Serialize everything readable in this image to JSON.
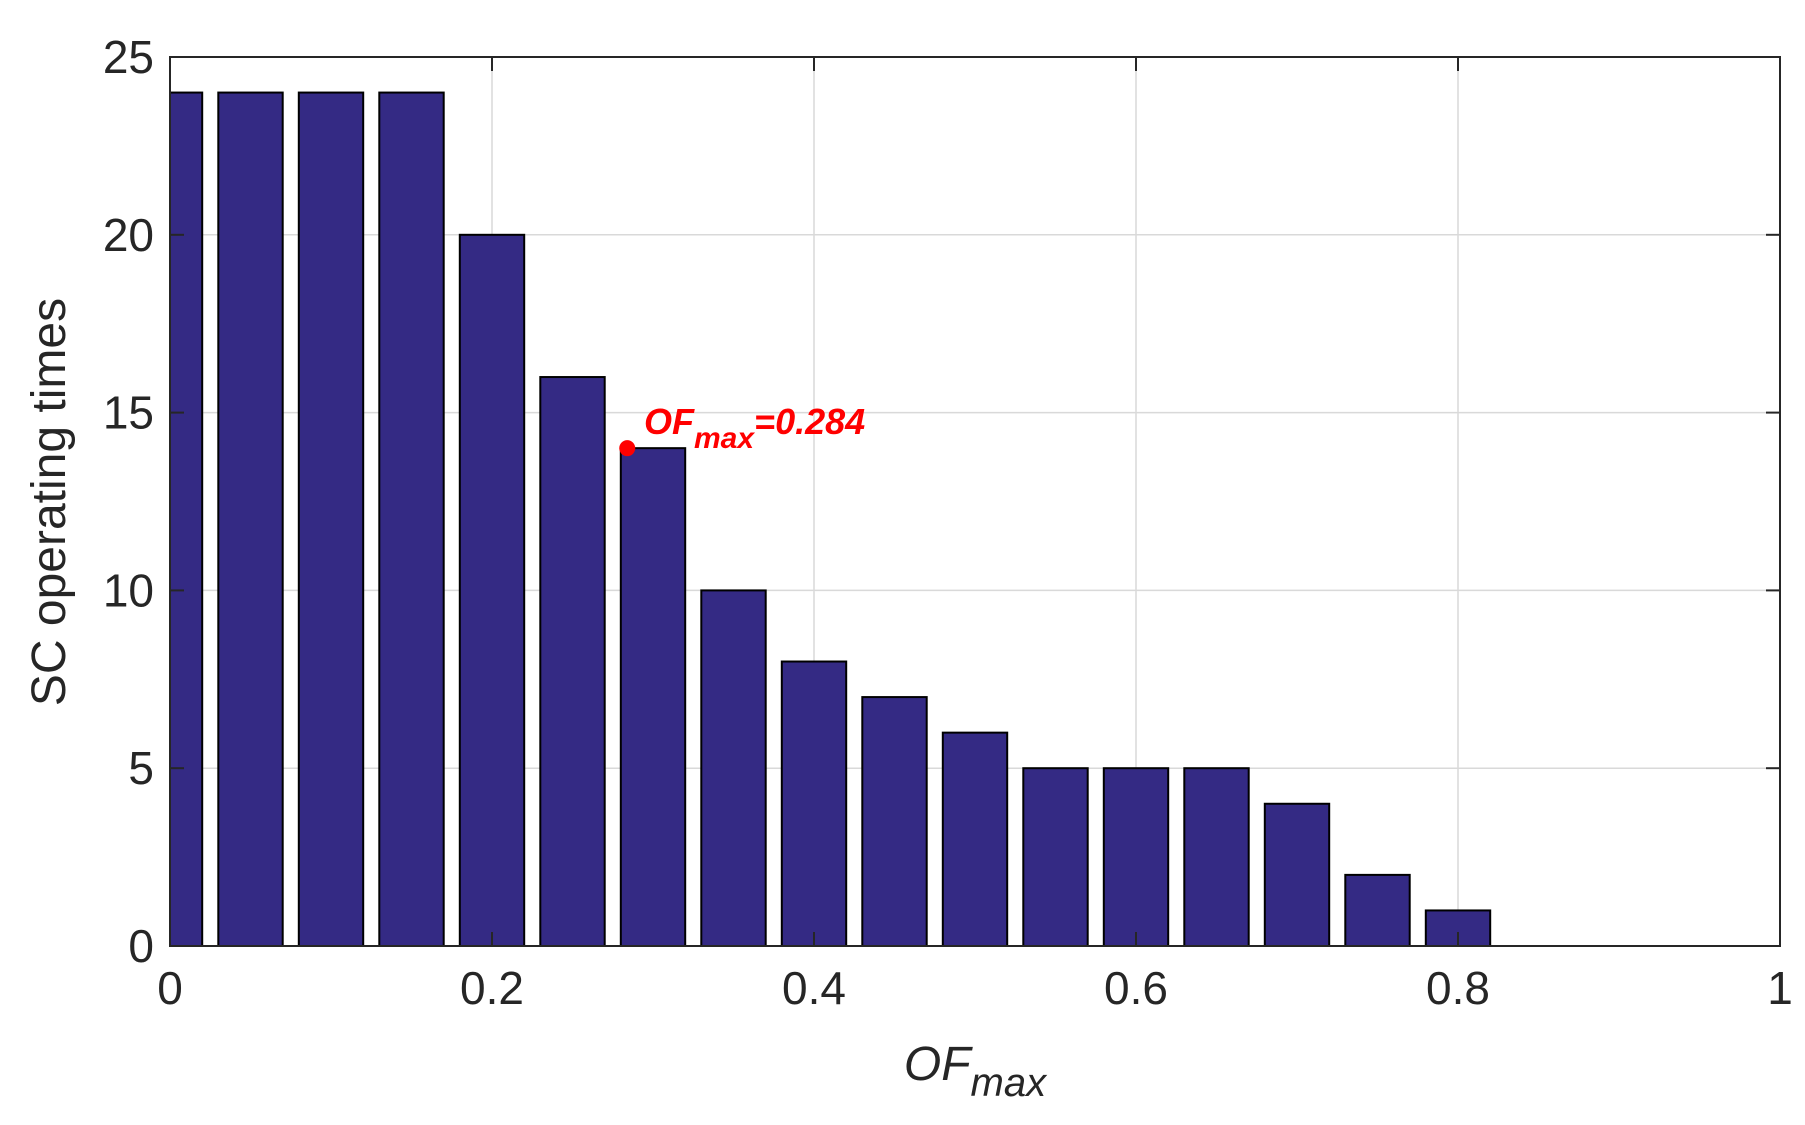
{
  "chart_data": {
    "type": "bar",
    "x": [
      0,
      0.05,
      0.1,
      0.15,
      0.2,
      0.25,
      0.3,
      0.35,
      0.4,
      0.45,
      0.5,
      0.55,
      0.6,
      0.65,
      0.7,
      0.75,
      0.8
    ],
    "values": [
      24,
      24,
      24,
      24,
      20,
      16,
      14,
      10,
      8,
      7,
      6,
      5,
      5,
      5,
      4,
      2,
      1
    ],
    "xlim": [
      0,
      1
    ],
    "ylim": [
      0,
      25
    ],
    "xticks": [
      0,
      0.2,
      0.4,
      0.6,
      0.8,
      1
    ],
    "xtick_labels": [
      "0",
      "0.2",
      "0.4",
      "0.6",
      "0.8",
      "1"
    ],
    "yticks": [
      0,
      5,
      10,
      15,
      20,
      25
    ],
    "ytick_labels": [
      "0",
      "5",
      "10",
      "15",
      "20",
      "25"
    ],
    "xlabel": {
      "main": "OF",
      "sub": "max"
    },
    "ylabel": "SC operating times",
    "grid": true,
    "bar_color": "#342a84",
    "annotation": {
      "x": 0.284,
      "y": 14,
      "label_main": "OF",
      "label_sub": "max",
      "label_value": "=0.284",
      "color": "#ff0000"
    }
  }
}
